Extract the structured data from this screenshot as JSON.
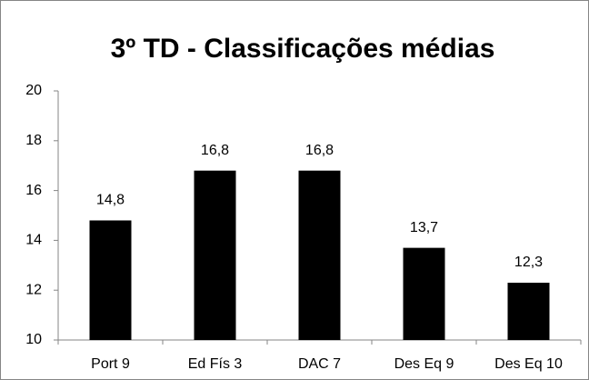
{
  "chart_data": {
    "type": "bar",
    "title": "3º TD - Classificações médias",
    "categories": [
      "Port 9",
      "Ed Fís 3",
      "DAC 7",
      "Des Eq 9",
      "Des Eq 10"
    ],
    "values": [
      14.8,
      16.8,
      16.8,
      13.7,
      12.3
    ],
    "value_labels": [
      "14,8",
      "16,8",
      "16,8",
      "13,7",
      "12,3"
    ],
    "color": "#000000",
    "ylim": [
      10,
      20
    ],
    "yticks": [
      10,
      12,
      14,
      16,
      18,
      20
    ],
    "grid": false
  }
}
